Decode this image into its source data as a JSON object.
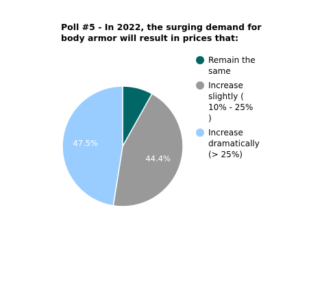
{
  "chart_data": {
    "type": "pie",
    "title_lines": [
      "Poll #5 - In 2022, the surging demand for",
      "body armor will result in prices that:"
    ],
    "slices": [
      {
        "label_lines": [
          "Remain the",
          "same"
        ],
        "value": 8.1,
        "color": "#006666",
        "data_label": ""
      },
      {
        "label_lines": [
          "Increase",
          "slightly (",
          "10% - 25%",
          ")"
        ],
        "value": 44.4,
        "color": "#999999",
        "data_label": "44.4%"
      },
      {
        "label_lines": [
          "Increase",
          "dramatically",
          "(> 25%)"
        ],
        "value": 47.5,
        "color": "#99ccff",
        "data_label": "47.5%"
      }
    ],
    "legend_position": "right"
  }
}
